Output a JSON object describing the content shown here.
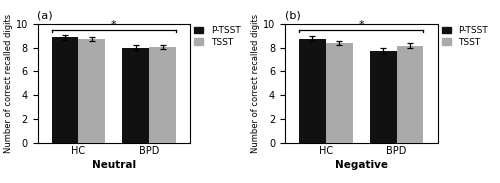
{
  "chart_data": [
    {
      "type": "bar",
      "title": "(a)",
      "xlabel": "Neutral",
      "ylabel": "Number of correct recalled digits",
      "categories": [
        "HC",
        "BPD"
      ],
      "series": [
        {
          "name": "P-TSST",
          "color": "#111111",
          "values": [
            8.85,
            8.0
          ],
          "errors": [
            0.22,
            0.2
          ]
        },
        {
          "name": "TSST",
          "color": "#aaaaaa",
          "values": [
            8.75,
            8.05
          ],
          "errors": [
            0.18,
            0.18
          ]
        }
      ],
      "annotations": [
        {
          "text": "*",
          "bracket_y": 9.45
        }
      ],
      "ylim": [
        0,
        10
      ],
      "yticks": [
        0,
        2,
        4,
        6,
        8,
        10
      ],
      "legend": "upper left"
    },
    {
      "type": "bar",
      "title": "(b)",
      "xlabel": "Negative",
      "ylabel": "Number of correct recalled digits",
      "categories": [
        "HC",
        "BPD"
      ],
      "series": [
        {
          "name": "P-TSST",
          "color": "#111111",
          "values": [
            8.75,
            7.7
          ],
          "errors": [
            0.22,
            0.28
          ]
        },
        {
          "name": "TSST",
          "color": "#aaaaaa",
          "values": [
            8.4,
            8.15
          ],
          "errors": [
            0.18,
            0.2
          ]
        }
      ],
      "annotations": [
        {
          "text": "*",
          "bracket_y": 9.45
        }
      ],
      "ylim": [
        0,
        10
      ],
      "yticks": [
        0,
        2,
        4,
        6,
        8,
        10
      ],
      "legend": "upper left"
    }
  ]
}
